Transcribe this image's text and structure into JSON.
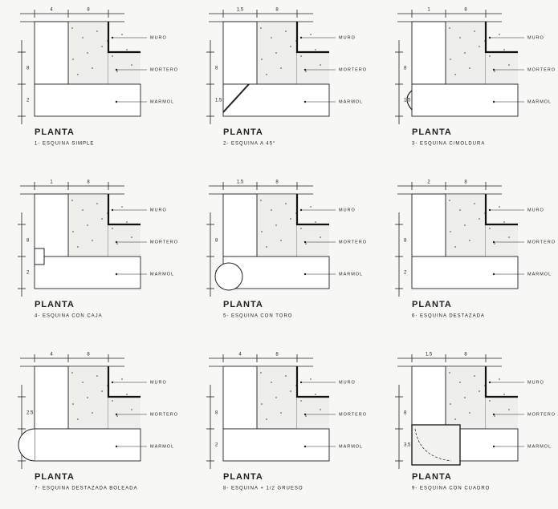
{
  "panels": [
    {
      "title": "PLANTA",
      "caption": "1- ESQUINA SIMPLE",
      "labels": [
        "MURO",
        "MORTERO",
        "MARMOL"
      ],
      "dims_top": [
        "4",
        "8"
      ],
      "dims_side": [
        "8",
        "2"
      ]
    },
    {
      "title": "PLANTA",
      "caption": "2- ESQUINA A 45°",
      "labels": [
        "MURO",
        "MORTERO",
        "MARMOL"
      ],
      "dims_top": [
        "1.5",
        "8"
      ],
      "dims_side": [
        "8",
        "1.5"
      ]
    },
    {
      "title": "PLANTA",
      "caption": "3- ESQUINA C/MOLDURA",
      "labels": [
        "MURO",
        "MORTERO",
        "MARMOL"
      ],
      "dims_top": [
        "1",
        "8"
      ],
      "dims_side": [
        "8",
        "1.5"
      ]
    },
    {
      "title": "PLANTA",
      "caption": "4- ESQUINA CON CAJA",
      "labels": [
        "MURO",
        "MORTERO",
        "MARMOL"
      ],
      "dims_top": [
        "1",
        "8"
      ],
      "dims_side": [
        "8",
        "2"
      ]
    },
    {
      "title": "PLANTA",
      "caption": "5- ESQUINA CON TORO",
      "labels": [
        "MURO",
        "MORTERO",
        "MARMOL"
      ],
      "dims_top": [
        "1.5",
        "8"
      ],
      "dims_side": [
        "8",
        "2"
      ]
    },
    {
      "title": "PLANTA",
      "caption": "6- ESQUINA DESTAZADA",
      "labels": [
        "MURO",
        "MORTERO",
        "MARMOL"
      ],
      "dims_top": [
        "2",
        "8"
      ],
      "dims_side": [
        "8",
        "2"
      ]
    },
    {
      "title": "PLANTA",
      "caption": "7- ESQUINA DESTAZADA BOLEADA",
      "labels": [
        "MURO",
        "MORTERO",
        "MARMOL"
      ],
      "dims_top": [
        "4",
        "8"
      ],
      "dims_side": [
        "2.5",
        "2"
      ]
    },
    {
      "title": "PLANTA",
      "caption": "8- ESQUINA + 1/2 GRUESO",
      "labels": [
        "MURO",
        "MORTERO",
        "MARMOL"
      ],
      "dims_top": [
        "4",
        "8"
      ],
      "dims_side": [
        "8",
        "2"
      ]
    },
    {
      "title": "PLANTA",
      "caption": "9- ESQUINA CON CUADRO",
      "labels": [
        "MURO",
        "MORTERO",
        "MARMOL"
      ],
      "dims_top": [
        "1.5",
        "8"
      ],
      "dims_side": [
        "8",
        "3.5"
      ]
    }
  ]
}
